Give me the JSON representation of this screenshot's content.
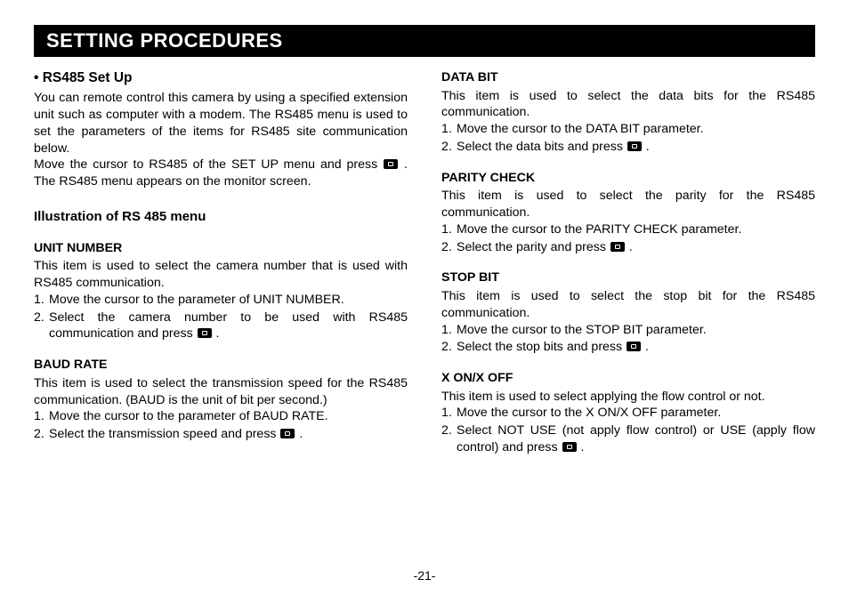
{
  "banner": "SETTING PROCEDURES",
  "page_number": "-21-",
  "left": {
    "main_heading": "• RS485 Set Up",
    "intro1": "You can remote control this camera by using a specified extension unit such as computer with a modem. The RS485 menu is used to set the parameters of the items for RS485 site communication below.",
    "intro2a": "Move the cursor to RS485 of the SET UP menu and press ",
    "intro2b": " .  The RS485 menu appears on the monitor screen.",
    "sub_heading": "Illustration of RS 485 menu",
    "unit": {
      "title": "UNIT NUMBER",
      "body": "This item is used to select the camera number that is used with RS485 communication.",
      "step1": "Move the cursor to the parameter of UNIT NUMBER.",
      "step2a": "Select the camera number to be used with RS485 communication and press ",
      "step2b": " ."
    },
    "baud": {
      "title": "BAUD RATE",
      "body": "This item is used to select the transmission speed for the RS485 communication. (BAUD is the unit of bit per second.)",
      "step1": "Move the cursor to the parameter of BAUD RATE.",
      "step2a": "Select the transmission speed and press ",
      "step2b": " ."
    }
  },
  "right": {
    "databit": {
      "title": "DATA BIT",
      "body": "This item is used to select the data bits for the RS485 communication.",
      "step1": "Move the cursor to the DATA BIT parameter.",
      "step2a": "Select the data bits and press ",
      "step2b": " ."
    },
    "parity": {
      "title": "PARITY CHECK",
      "body": "This item is used to select the parity for the RS485 communication.",
      "step1": "Move the cursor to the PARITY CHECK parameter.",
      "step2a": "Select the parity and press ",
      "step2b": " ."
    },
    "stop": {
      "title": "STOP BIT",
      "body": "This item is used to select the stop bit for the RS485 communication.",
      "step1": "Move the cursor to the STOP BIT parameter.",
      "step2a": "Select the stop bits and press ",
      "step2b": " ."
    },
    "xon": {
      "title": "X ON/X OFF",
      "body": "This item is used to select applying the flow control or not.",
      "step1": "Move the cursor to the X ON/X OFF parameter.",
      "step2a": "Select NOT USE (not apply flow control) or USE (apply flow control) and press ",
      "step2b": " ."
    }
  }
}
